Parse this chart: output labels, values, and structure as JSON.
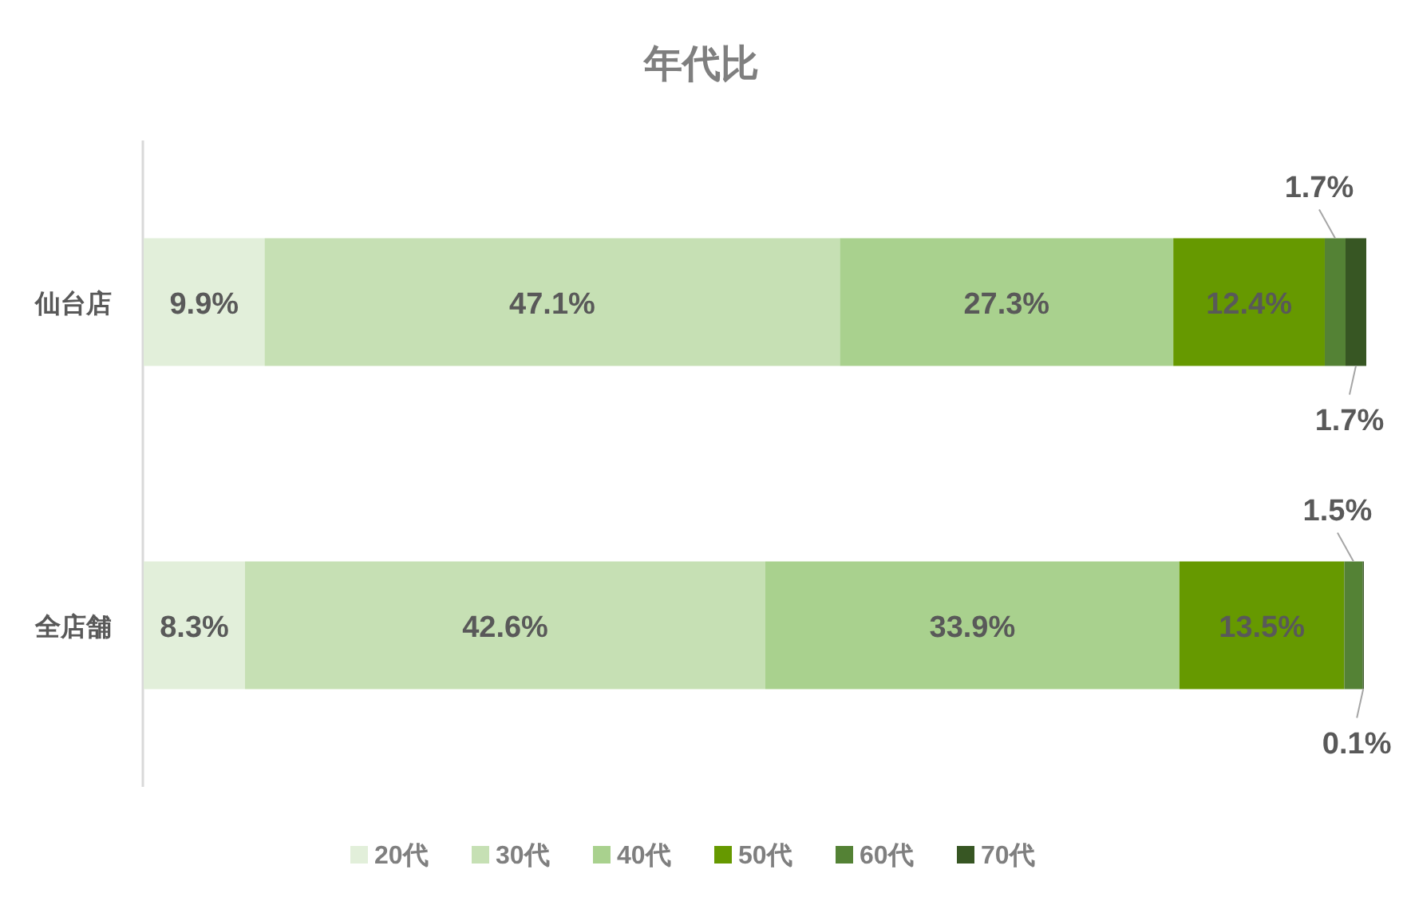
{
  "chart_data": {
    "type": "bar",
    "title": "年代比",
    "orientation": "horizontal",
    "stacked": true,
    "tick_labels": "y",
    "legend": "bottom",
    "categories": [
      "仙台店",
      "全店舗"
    ],
    "series": [
      {
        "name": "20代",
        "color": "#e2efda",
        "values": [
          9.9,
          8.3
        ],
        "value_labels": [
          "9.9%",
          "8.3%"
        ]
      },
      {
        "name": "30代",
        "color": "#c6e0b4",
        "values": [
          47.1,
          42.6
        ],
        "value_labels": [
          "47.1%",
          "42.6%"
        ]
      },
      {
        "name": "40代",
        "color": "#a9d18e",
        "values": [
          27.3,
          33.9
        ],
        "value_labels": [
          "27.3%",
          "33.9%"
        ]
      },
      {
        "name": "50代",
        "color": "#669900",
        "values": [
          12.4,
          13.5
        ],
        "value_labels": [
          "12.4%",
          "13.5%"
        ]
      },
      {
        "name": "60代",
        "color": "#548235",
        "values": [
          1.7,
          1.5
        ],
        "value_labels": [
          "1.7%",
          "1.5%"
        ]
      },
      {
        "name": "70代",
        "color": "#375623",
        "values": [
          1.7,
          0.1
        ],
        "value_labels": [
          "1.7%",
          "0.1%"
        ]
      }
    ]
  }
}
